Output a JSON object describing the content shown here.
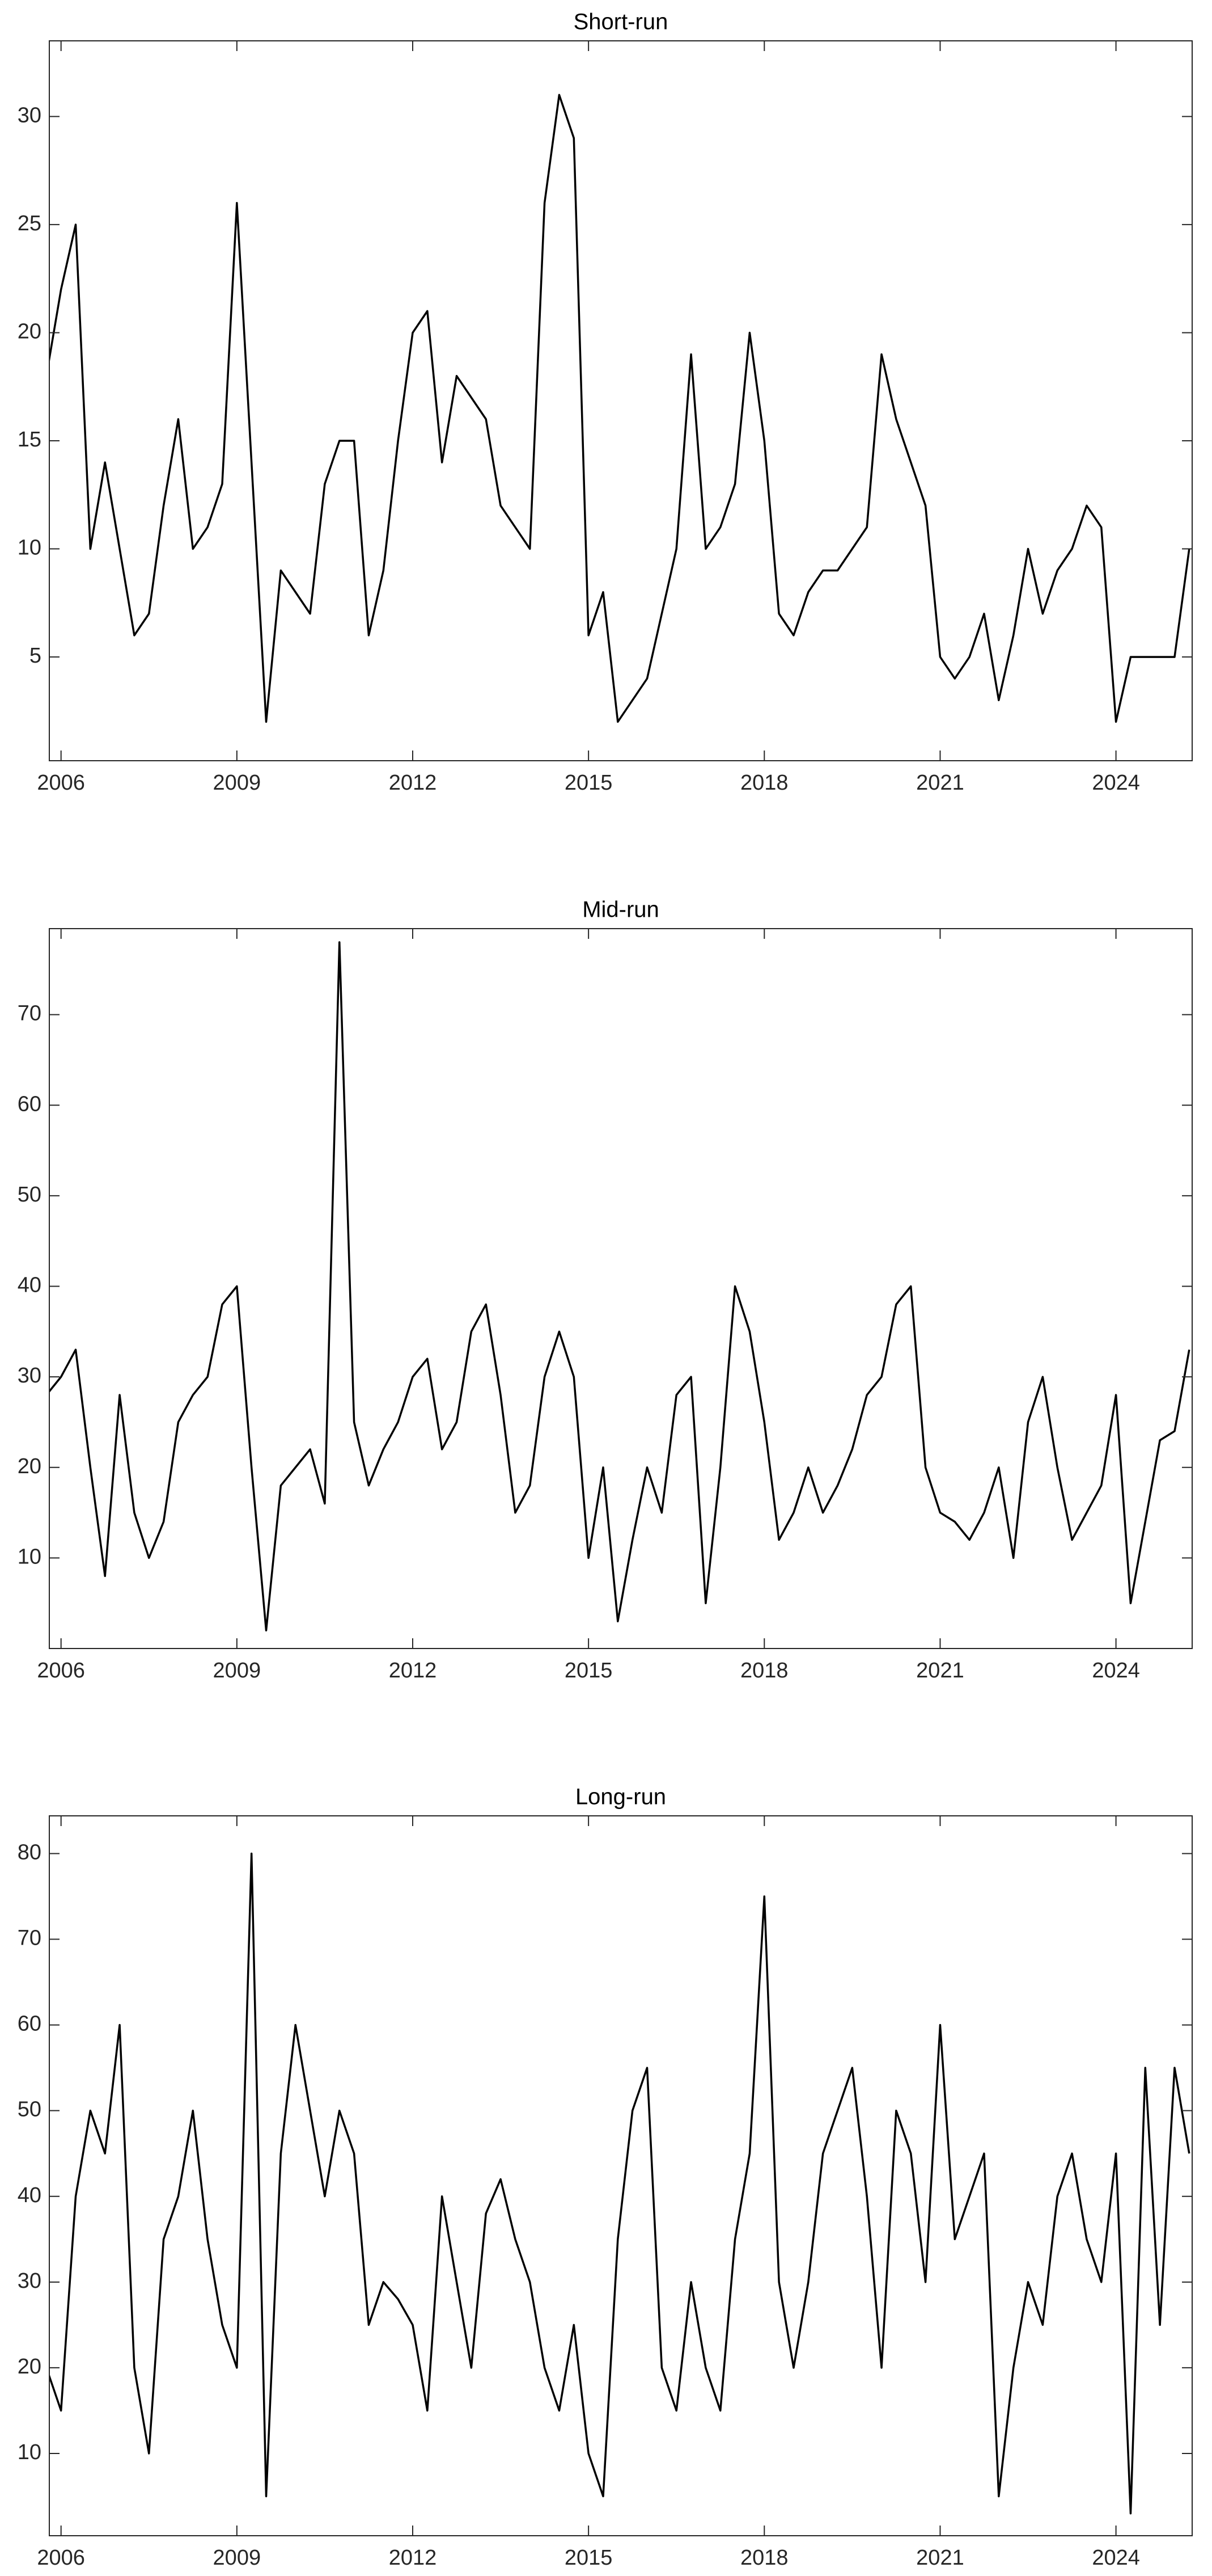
{
  "chart_data": [
    {
      "type": "line",
      "title": "Short-run",
      "color": "#000000",
      "x": [
        2005.75,
        2006,
        2006.25,
        2006.5,
        2006.75,
        2007,
        2007.25,
        2007.5,
        2007.75,
        2008,
        2008.25,
        2008.5,
        2008.75,
        2009,
        2009.25,
        2009.5,
        2009.75,
        2010,
        2010.25,
        2010.5,
        2010.75,
        2011,
        2011.25,
        2011.5,
        2011.75,
        2012,
        2012.25,
        2012.5,
        2012.75,
        2013,
        2013.25,
        2013.5,
        2013.75,
        2014,
        2014.25,
        2014.5,
        2014.75,
        2015,
        2015.25,
        2015.5,
        2015.75,
        2016,
        2016.25,
        2016.5,
        2016.75,
        2017,
        2017.25,
        2017.5,
        2017.75,
        2018,
        2018.25,
        2018.5,
        2018.75,
        2019,
        2019.25,
        2019.5,
        2019.75,
        2020,
        2020.25,
        2020.5,
        2020.75,
        2021,
        2021.25,
        2021.5,
        2021.75,
        2022,
        2022.25,
        2022.5,
        2022.75,
        2023,
        2023.25,
        2023.5,
        2023.75,
        2024,
        2024.25,
        2024.5,
        2024.75,
        2025,
        2025.25
      ],
      "values": [
        18,
        22,
        25,
        10,
        14,
        10,
        6,
        7,
        12,
        16,
        10,
        11,
        13,
        26,
        14,
        2,
        9,
        8,
        7,
        13,
        15,
        15,
        6,
        9,
        15,
        20,
        21,
        14,
        18,
        17,
        16,
        12,
        11,
        10,
        26,
        31,
        29,
        6,
        8,
        2,
        3,
        4,
        7,
        10,
        19,
        10,
        11,
        13,
        20,
        15,
        7,
        6,
        8,
        9,
        9,
        10,
        11,
        19,
        16,
        14,
        12,
        5,
        4,
        5,
        7,
        3,
        6,
        10,
        7,
        9,
        10,
        12,
        11,
        2,
        5,
        5,
        5,
        5,
        10
      ],
      "xlim": [
        2005.8,
        2025.3
      ],
      "xticks": [
        2006,
        2009,
        2012,
        2015,
        2018,
        2021,
        2024
      ],
      "ylim": [
        0.2,
        33.5
      ],
      "yticks": [
        5,
        10,
        15,
        20,
        25,
        30
      ]
    },
    {
      "type": "line",
      "title": "Mid-run",
      "color": "#000000",
      "x": [
        2005.75,
        2006,
        2006.25,
        2006.5,
        2006.75,
        2007,
        2007.25,
        2007.5,
        2007.75,
        2008,
        2008.25,
        2008.5,
        2008.75,
        2009,
        2009.25,
        2009.5,
        2009.75,
        2010,
        2010.25,
        2010.5,
        2010.75,
        2011,
        2011.25,
        2011.5,
        2011.75,
        2012,
        2012.25,
        2012.5,
        2012.75,
        2013,
        2013.25,
        2013.5,
        2013.75,
        2014,
        2014.25,
        2014.5,
        2014.75,
        2015,
        2015.25,
        2015.5,
        2015.75,
        2016,
        2016.25,
        2016.5,
        2016.75,
        2017,
        2017.25,
        2017.5,
        2017.75,
        2018,
        2018.25,
        2018.5,
        2018.75,
        2019,
        2019.25,
        2019.5,
        2019.75,
        2020,
        2020.25,
        2020.5,
        2020.75,
        2021,
        2021.25,
        2021.5,
        2021.75,
        2022,
        2022.25,
        2022.5,
        2022.75,
        2023,
        2023.25,
        2023.5,
        2023.75,
        2024,
        2024.25,
        2024.5,
        2024.75,
        2025,
        2025.25
      ],
      "values": [
        28,
        30,
        33,
        20,
        8,
        28,
        15,
        10,
        14,
        25,
        28,
        30,
        38,
        40,
        20,
        2,
        18,
        20,
        22,
        16,
        78,
        25,
        18,
        22,
        25,
        30,
        32,
        22,
        25,
        35,
        38,
        28,
        15,
        18,
        30,
        35,
        30,
        10,
        20,
        3,
        12,
        20,
        15,
        28,
        30,
        5,
        20,
        40,
        35,
        25,
        12,
        15,
        20,
        15,
        18,
        22,
        28,
        30,
        38,
        40,
        20,
        15,
        14,
        12,
        15,
        20,
        10,
        25,
        30,
        20,
        12,
        15,
        18,
        28,
        5,
        14,
        23,
        24,
        33
      ],
      "xlim": [
        2005.8,
        2025.3
      ],
      "xticks": [
        2006,
        2009,
        2012,
        2015,
        2018,
        2021,
        2024
      ],
      "ylim": [
        0,
        79.5
      ],
      "yticks": [
        10,
        20,
        30,
        40,
        50,
        60,
        70
      ]
    },
    {
      "type": "line",
      "title": "Long-run",
      "color": "#000000",
      "x": [
        2005.75,
        2006,
        2006.25,
        2006.5,
        2006.75,
        2007,
        2007.25,
        2007.5,
        2007.75,
        2008,
        2008.25,
        2008.5,
        2008.75,
        2009,
        2009.25,
        2009.5,
        2009.75,
        2010,
        2010.25,
        2010.5,
        2010.75,
        2011,
        2011.25,
        2011.5,
        2011.75,
        2012,
        2012.25,
        2012.5,
        2012.75,
        2013,
        2013.25,
        2013.5,
        2013.75,
        2014,
        2014.25,
        2014.5,
        2014.75,
        2015,
        2015.25,
        2015.5,
        2015.75,
        2016,
        2016.25,
        2016.5,
        2016.75,
        2017,
        2017.25,
        2017.5,
        2017.75,
        2018,
        2018.25,
        2018.5,
        2018.75,
        2019,
        2019.25,
        2019.5,
        2019.75,
        2020,
        2020.25,
        2020.5,
        2020.75,
        2021,
        2021.25,
        2021.5,
        2021.75,
        2022,
        2022.25,
        2022.5,
        2022.75,
        2023,
        2023.25,
        2023.5,
        2023.75,
        2024,
        2024.25,
        2024.5,
        2024.75,
        2025,
        2025.25
      ],
      "values": [
        20,
        15,
        40,
        50,
        45,
        60,
        20,
        10,
        35,
        40,
        50,
        35,
        25,
        20,
        80,
        5,
        45,
        60,
        50,
        40,
        50,
        45,
        25,
        30,
        28,
        25,
        15,
        40,
        30,
        20,
        38,
        42,
        35,
        30,
        20,
        15,
        25,
        10,
        5,
        35,
        50,
        55,
        20,
        15,
        30,
        20,
        15,
        35,
        45,
        75,
        30,
        20,
        30,
        45,
        50,
        55,
        40,
        20,
        50,
        45,
        30,
        60,
        35,
        40,
        45,
        5,
        20,
        30,
        25,
        40,
        45,
        35,
        30,
        45,
        3,
        55,
        25,
        55,
        45
      ],
      "xlim": [
        2005.8,
        2025.3
      ],
      "xticks": [
        2006,
        2009,
        2012,
        2015,
        2018,
        2021,
        2024
      ],
      "ylim": [
        0.4,
        84.4
      ],
      "yticks": [
        10,
        20,
        30,
        40,
        50,
        60,
        70,
        80
      ]
    }
  ]
}
